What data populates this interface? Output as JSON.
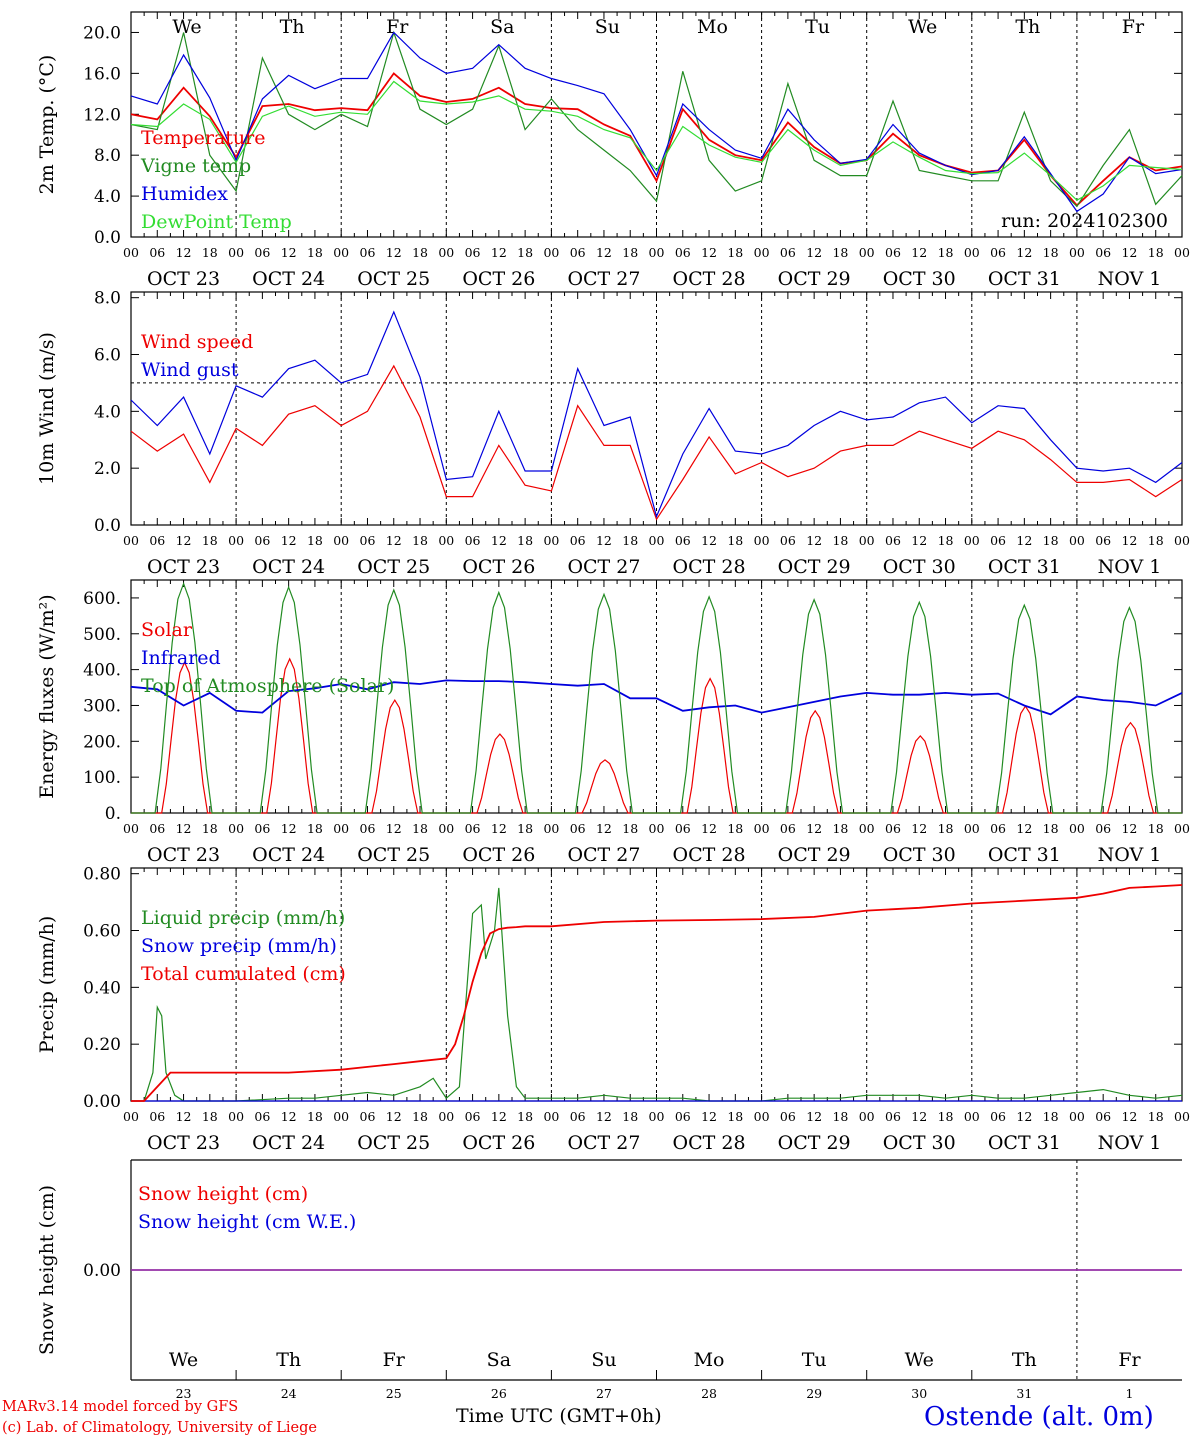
{
  "footer": {
    "model": "MARv3.14 model forced by GFS",
    "credit": "(c) Lab. of Climatology, University of Liege",
    "time_label": "Time UTC (GMT+0h)",
    "station": "Ostende (alt. 0m)"
  },
  "colors": {
    "red": "#ee0000",
    "darkgreen": "#228b22",
    "blue": "#0000dd",
    "lightgreen": "#33dd33",
    "purple": "#9933aa",
    "weekend": "#ee0000"
  },
  "days": {
    "weekday": [
      "We",
      "Th",
      "Fr",
      "Sa",
      "Su",
      "Mo",
      "Tu",
      "We",
      "Th",
      "Fr"
    ],
    "weekend": [
      false,
      false,
      false,
      true,
      true,
      false,
      false,
      false,
      false,
      false
    ],
    "date": [
      "OCT 23",
      "OCT 24",
      "OCT 25",
      "OCT 26",
      "OCT 27",
      "OCT 28",
      "OCT 29",
      "OCT 30",
      "OCT 31",
      "NOV  1"
    ],
    "daynum": [
      "23",
      "24",
      "25",
      "26",
      "27",
      "28",
      "29",
      "30",
      "31",
      "1"
    ],
    "hours": [
      "00",
      "06",
      "12",
      "18"
    ],
    "end_hour": "00"
  },
  "chart_data": [
    {
      "type": "line",
      "ylabel": "2m Temp. (°C)",
      "ylim": [
        0,
        22
      ],
      "yticks": [
        "0.0",
        "4.0",
        "8.0",
        "12.0",
        "16.0",
        "20.0"
      ],
      "ytick_values": [
        0,
        4,
        8,
        12,
        16,
        20
      ],
      "annotation": "run: 2024102300",
      "x_hours": [
        0,
        6,
        12,
        18,
        24,
        30,
        36,
        42,
        48,
        54,
        60,
        66,
        72,
        78,
        84,
        90,
        96,
        102,
        108,
        114,
        120,
        126,
        132,
        138,
        144,
        150,
        156,
        162,
        168,
        174,
        180,
        186,
        192,
        198,
        204,
        210,
        216,
        222,
        228,
        234,
        240
      ],
      "series": [
        {
          "name": "Temperature",
          "color": "#ee0000",
          "values": [
            12.0,
            11.5,
            14.6,
            11.8,
            7.8,
            12.8,
            13.0,
            12.4,
            12.6,
            12.4,
            16.0,
            13.8,
            13.2,
            13.5,
            14.6,
            13.0,
            12.6,
            12.5,
            11.0,
            9.9,
            5.5,
            12.5,
            9.5,
            8.0,
            7.5,
            11.2,
            8.8,
            7.2,
            7.5,
            10.1,
            8.0,
            7.0,
            6.3,
            6.5,
            9.5,
            6.0,
            3.1,
            5.5,
            7.8,
            6.5,
            6.9
          ]
        },
        {
          "name": "Vigne temp",
          "color": "#228b22",
          "values": [
            11.0,
            10.5,
            20.0,
            8.0,
            4.5,
            17.5,
            12.0,
            10.5,
            12.0,
            10.8,
            20.0,
            12.5,
            11.0,
            12.5,
            18.7,
            10.5,
            13.5,
            10.5,
            8.5,
            6.5,
            3.5,
            16.2,
            7.5,
            4.5,
            5.5,
            15.0,
            7.5,
            6.0,
            6.0,
            13.3,
            6.5,
            6.0,
            5.5,
            5.5,
            12.2,
            5.5,
            3.0,
            7.0,
            10.5,
            3.2,
            6.0
          ]
        },
        {
          "name": "Humidex",
          "color": "#0000dd",
          "values": [
            13.8,
            13.0,
            17.8,
            13.6,
            7.5,
            13.5,
            15.8,
            14.5,
            15.5,
            15.5,
            20.0,
            17.5,
            16.0,
            16.5,
            18.8,
            16.5,
            15.5,
            14.8,
            14.0,
            10.5,
            6.0,
            13.0,
            10.5,
            8.5,
            7.7,
            12.5,
            9.5,
            7.2,
            7.6,
            11.0,
            8.2,
            7.0,
            6.1,
            6.5,
            9.8,
            6.2,
            2.5,
            4.2,
            7.8,
            6.2,
            6.6
          ]
        },
        {
          "name": "DewPoint Temp",
          "color": "#33dd33",
          "values": [
            11.0,
            10.8,
            13.0,
            11.5,
            7.3,
            11.8,
            12.8,
            11.8,
            12.2,
            12.0,
            15.2,
            13.3,
            13.0,
            13.2,
            13.8,
            12.5,
            12.3,
            11.8,
            10.5,
            9.7,
            6.5,
            10.8,
            9.0,
            7.8,
            7.3,
            10.5,
            8.5,
            7.0,
            7.5,
            9.3,
            7.8,
            6.5,
            6.2,
            6.3,
            8.2,
            6.0,
            3.6,
            5.0,
            7.0,
            6.8,
            6.6
          ]
        }
      ]
    },
    {
      "type": "line",
      "ylabel": "10m Wind (m/s)",
      "ylim": [
        0,
        8.2
      ],
      "yticks": [
        "0.0",
        "2.0",
        "4.0",
        "6.0",
        "8.0"
      ],
      "ytick_values": [
        0,
        2,
        4,
        6,
        8
      ],
      "reference_line": 5.0,
      "x_hours": [
        0,
        6,
        12,
        18,
        24,
        30,
        36,
        42,
        48,
        54,
        60,
        66,
        72,
        78,
        84,
        90,
        96,
        102,
        108,
        114,
        120,
        126,
        132,
        138,
        144,
        150,
        156,
        162,
        168,
        174,
        180,
        186,
        192,
        198,
        204,
        210,
        216,
        222,
        228,
        234,
        240
      ],
      "series": [
        {
          "name": "Wind speed",
          "color": "#ee0000",
          "values": [
            3.3,
            2.6,
            3.2,
            1.5,
            3.4,
            2.8,
            3.9,
            4.2,
            3.5,
            4.0,
            5.6,
            3.8,
            1.0,
            1.0,
            2.8,
            1.4,
            1.2,
            4.2,
            2.8,
            2.8,
            0.2,
            1.6,
            3.1,
            1.8,
            2.2,
            1.7,
            2.0,
            2.6,
            2.8,
            2.8,
            3.3,
            3.0,
            2.7,
            3.3,
            3.0,
            2.3,
            1.5,
            1.5,
            1.6,
            1.0,
            1.6
          ]
        },
        {
          "name": "Wind gust",
          "color": "#0000dd",
          "values": [
            4.4,
            3.5,
            4.5,
            2.5,
            4.9,
            4.5,
            5.5,
            5.8,
            5.0,
            5.3,
            7.5,
            5.2,
            1.6,
            1.7,
            4.0,
            1.9,
            1.9,
            5.5,
            3.5,
            3.8,
            0.3,
            2.5,
            4.1,
            2.6,
            2.5,
            2.8,
            3.5,
            4.0,
            3.7,
            3.8,
            4.3,
            4.5,
            3.6,
            4.2,
            4.1,
            3.0,
            2.0,
            1.9,
            2.0,
            1.5,
            2.2
          ]
        }
      ]
    },
    {
      "type": "line",
      "ylabel": "Energy fluxes (W/m²)",
      "ylim": [
        0,
        650
      ],
      "yticks": [
        "0.",
        "100.",
        "200.",
        "300.",
        "400.",
        "500.",
        "600."
      ],
      "ytick_values": [
        0,
        100,
        200,
        300,
        400,
        500,
        600
      ],
      "series": [
        {
          "name": "Solar",
          "color": "#ee0000",
          "days": [
            [
              7.0,
              17.5,
              420
            ],
            [
              31.0,
              41.5,
              430
            ],
            [
              55.0,
              65.5,
              315
            ],
            [
              79.0,
              89.5,
              220
            ],
            [
              103.0,
              113.5,
              148
            ],
            [
              127.0,
              137.5,
              375
            ],
            [
              151.0,
              161.5,
              285
            ],
            [
              175.0,
              185.5,
              215
            ],
            [
              199.0,
              209.5,
              298
            ],
            [
              223.0,
              233.5,
              252
            ]
          ]
        },
        {
          "name": "Infrared",
          "color": "#0000dd",
          "x_hours": [
            0,
            6,
            12,
            18,
            24,
            30,
            36,
            42,
            48,
            54,
            60,
            66,
            72,
            78,
            84,
            90,
            96,
            102,
            108,
            114,
            120,
            126,
            132,
            138,
            144,
            150,
            156,
            162,
            168,
            174,
            180,
            186,
            192,
            198,
            204,
            210,
            216,
            222,
            228,
            234,
            240
          ],
          "values": [
            352,
            345,
            300,
            335,
            285,
            280,
            340,
            348,
            360,
            345,
            365,
            360,
            370,
            368,
            368,
            365,
            360,
            355,
            360,
            320,
            320,
            285,
            295,
            300,
            280,
            295,
            310,
            325,
            335,
            330,
            330,
            335,
            330,
            333,
            300,
            275,
            325,
            315,
            310,
            300,
            335
          ]
        },
        {
          "name": "Top of Atmosphere (Solar)",
          "color": "#228b22",
          "days": [
            [
              5.5,
              18.5,
              640
            ],
            [
              29.5,
              42.5,
              630
            ],
            [
              53.5,
              66.5,
              622
            ],
            [
              77.5,
              90.5,
              615
            ],
            [
              101.5,
              114.5,
              610
            ],
            [
              125.5,
              138.5,
              603
            ],
            [
              149.5,
              162.5,
              595
            ],
            [
              173.5,
              186.5,
              588
            ],
            [
              197.5,
              210.5,
              580
            ],
            [
              221.5,
              234.5,
              573
            ]
          ]
        }
      ]
    },
    {
      "type": "line",
      "ylabel": "Precip (mm/h)",
      "ylim": [
        0,
        0.82
      ],
      "yticks": [
        "0.00",
        "0.20",
        "0.40",
        "0.60",
        "0.80"
      ],
      "ytick_values": [
        0,
        0.2,
        0.4,
        0.6,
        0.8
      ],
      "series": [
        {
          "name": "Liquid precip (mm/h)",
          "color": "#228b22",
          "x_hours": [
            0,
            3,
            5,
            6,
            7,
            8,
            10,
            12,
            24,
            36,
            42,
            48,
            54,
            60,
            66,
            69,
            72,
            75,
            78,
            80,
            81,
            83,
            84,
            86,
            88,
            90,
            96,
            102,
            108,
            114,
            120,
            126,
            132,
            138,
            144,
            150,
            162,
            168,
            174,
            180,
            186,
            192,
            198,
            204,
            210,
            216,
            222,
            228,
            234,
            240
          ],
          "values": [
            0,
            0,
            0.1,
            0.33,
            0.3,
            0.1,
            0.02,
            0,
            0,
            0.01,
            0.01,
            0.02,
            0.03,
            0.02,
            0.05,
            0.08,
            0.01,
            0.05,
            0.66,
            0.69,
            0.5,
            0.6,
            0.75,
            0.3,
            0.05,
            0.01,
            0.01,
            0.01,
            0.02,
            0.01,
            0.01,
            0.01,
            0.0,
            0.0,
            0.0,
            0.01,
            0.01,
            0.02,
            0.02,
            0.02,
            0.01,
            0.02,
            0.01,
            0.01,
            0.02,
            0.03,
            0.04,
            0.02,
            0.01,
            0.02
          ]
        },
        {
          "name": "Snow precip (mm/h)",
          "color": "#0000dd",
          "x_hours": [
            0,
            240
          ],
          "values": [
            0,
            0
          ]
        },
        {
          "name": "Total cumulated (cm)",
          "color": "#ee0000",
          "x_hours": [
            0,
            3,
            6,
            9,
            12,
            24,
            36,
            48,
            54,
            60,
            66,
            72,
            74,
            76,
            78,
            80,
            82,
            84,
            86,
            88,
            90,
            96,
            108,
            120,
            132,
            144,
            156,
            168,
            180,
            192,
            204,
            216,
            222,
            228,
            234,
            240
          ],
          "values": [
            0,
            0,
            0.05,
            0.1,
            0.1,
            0.1,
            0.1,
            0.11,
            0.12,
            0.13,
            0.14,
            0.15,
            0.2,
            0.3,
            0.42,
            0.52,
            0.59,
            0.605,
            0.61,
            0.612,
            0.615,
            0.615,
            0.63,
            0.635,
            0.637,
            0.64,
            0.648,
            0.67,
            0.68,
            0.695,
            0.705,
            0.715,
            0.73,
            0.75,
            0.755,
            0.76
          ]
        }
      ]
    },
    {
      "type": "line",
      "ylabel": "Snow height (cm)",
      "ylim": [
        -1,
        1
      ],
      "yticks": [
        "0.00"
      ],
      "ytick_values": [
        0
      ],
      "series": [
        {
          "name": "Snow height (cm)",
          "color": "#ee0000",
          "x_hours": [
            0,
            240
          ],
          "values": [
            0,
            0
          ]
        },
        {
          "name": "Snow height (cm W.E.)",
          "color": "#0000dd",
          "x_hours": [
            0,
            240
          ],
          "values": [
            0,
            0
          ]
        }
      ]
    }
  ]
}
